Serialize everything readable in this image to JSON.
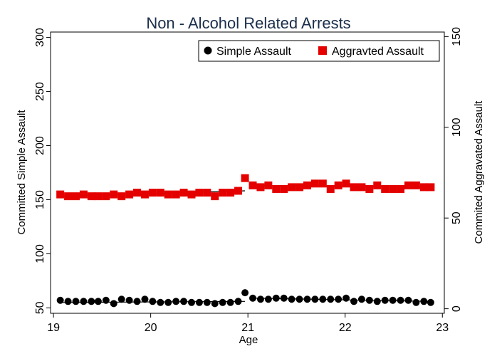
{
  "chart_data": {
    "type": "scatter",
    "title": "Non - Alcohol Related Arrests",
    "xlabel": "Age",
    "ylabel_left": "Committed Simple Assault",
    "ylabel_right": "Commited Aggravated Assault",
    "xlim": [
      18.97,
      23.02
    ],
    "ylim_left": [
      45,
      305
    ],
    "ylim_right": [
      -2.5,
      152.5
    ],
    "xticks": [
      19,
      20,
      21,
      22,
      23
    ],
    "yticks_left": [
      50,
      100,
      150,
      200,
      250,
      300
    ],
    "yticks_right": [
      0,
      50,
      100,
      150
    ],
    "grid": false,
    "legend_position": "top-right",
    "cutoff": 21,
    "x": [
      19.07,
      19.15,
      19.23,
      19.31,
      19.39,
      19.46,
      19.54,
      19.62,
      19.7,
      19.78,
      19.86,
      19.94,
      20.02,
      20.1,
      20.18,
      20.26,
      20.34,
      20.42,
      20.5,
      20.58,
      20.66,
      20.74,
      20.82,
      20.9,
      20.97,
      21.05,
      21.13,
      21.21,
      21.29,
      21.37,
      21.45,
      21.53,
      21.61,
      21.69,
      21.77,
      21.85,
      21.93,
      22.01,
      22.09,
      22.17,
      22.25,
      22.33,
      22.41,
      22.49,
      22.57,
      22.65,
      22.73,
      22.81,
      22.88
    ],
    "series": [
      {
        "name": "Simple Assault",
        "axis": "left",
        "marker": "circle",
        "color": "#000000",
        "values": [
          57,
          56,
          56,
          56,
          56,
          56,
          57,
          54,
          58,
          57,
          56,
          58,
          56,
          55,
          55,
          56,
          56,
          55,
          55,
          55,
          54,
          55,
          55,
          56,
          64,
          59,
          58,
          58,
          59,
          59,
          58,
          58,
          58,
          58,
          58,
          58,
          58,
          59,
          56,
          58,
          57,
          56,
          57,
          57,
          57,
          57,
          55,
          56,
          55
        ],
        "fit_before": [
          55,
          56
        ],
        "fit_after": [
          59,
          56
        ]
      },
      {
        "name": "Aggravted Assault",
        "axis": "right",
        "marker": "square",
        "color": "#e50000",
        "values": [
          63,
          62,
          62,
          63,
          62,
          62,
          62,
          63,
          62,
          63,
          64,
          63,
          64,
          64,
          63,
          63,
          64,
          63,
          64,
          64,
          62,
          64,
          64,
          65,
          72,
          68,
          67,
          68,
          66,
          66,
          67,
          67,
          68,
          69,
          69,
          66,
          68,
          69,
          67,
          67,
          66,
          68,
          66,
          66,
          66,
          68,
          68,
          67,
          67
        ],
        "fit_before": [
          62,
          65
        ],
        "fit_after": [
          68,
          67
        ]
      }
    ]
  }
}
